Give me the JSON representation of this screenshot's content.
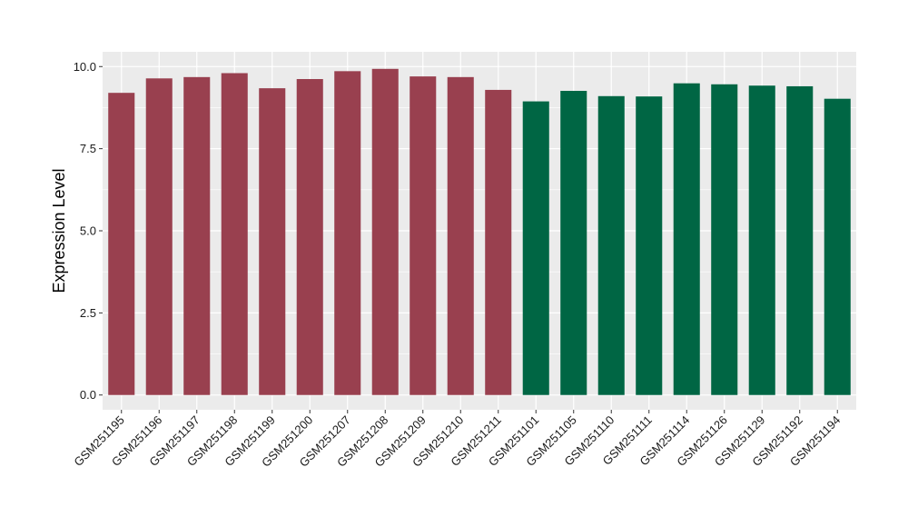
{
  "chart_data": {
    "type": "bar",
    "title": "",
    "xlabel": "",
    "ylabel": "Expression Level",
    "ylim": [
      -0.45,
      10.45
    ],
    "yticks": [
      0.0,
      2.5,
      5.0,
      7.5,
      10.0
    ],
    "ytick_labels": [
      "0.0",
      "2.5",
      "5.0",
      "7.5",
      "10.0"
    ],
    "grid": true,
    "legend": "none",
    "categories": [
      "GSM251195",
      "GSM251196",
      "GSM251197",
      "GSM251198",
      "GSM251199",
      "GSM251200",
      "GSM251207",
      "GSM251208",
      "GSM251209",
      "GSM251210",
      "GSM251211",
      "GSM251101",
      "GSM251105",
      "GSM251110",
      "GSM251111",
      "GSM251114",
      "GSM251126",
      "GSM251129",
      "GSM251192",
      "GSM251194"
    ],
    "values": [
      9.2,
      9.64,
      9.68,
      9.8,
      9.34,
      9.62,
      9.86,
      9.93,
      9.7,
      9.68,
      9.29,
      8.94,
      9.26,
      9.1,
      9.09,
      9.49,
      9.46,
      9.42,
      9.4,
      9.02
    ],
    "groups": [
      "red",
      "red",
      "red",
      "red",
      "red",
      "red",
      "red",
      "red",
      "red",
      "red",
      "red",
      "green",
      "green",
      "green",
      "green",
      "green",
      "green",
      "green",
      "green",
      "green"
    ],
    "colors": {
      "red": "#99404f",
      "green": "#006644"
    },
    "panel_background": "#ebebeb",
    "grid_color": "#ffffff"
  }
}
